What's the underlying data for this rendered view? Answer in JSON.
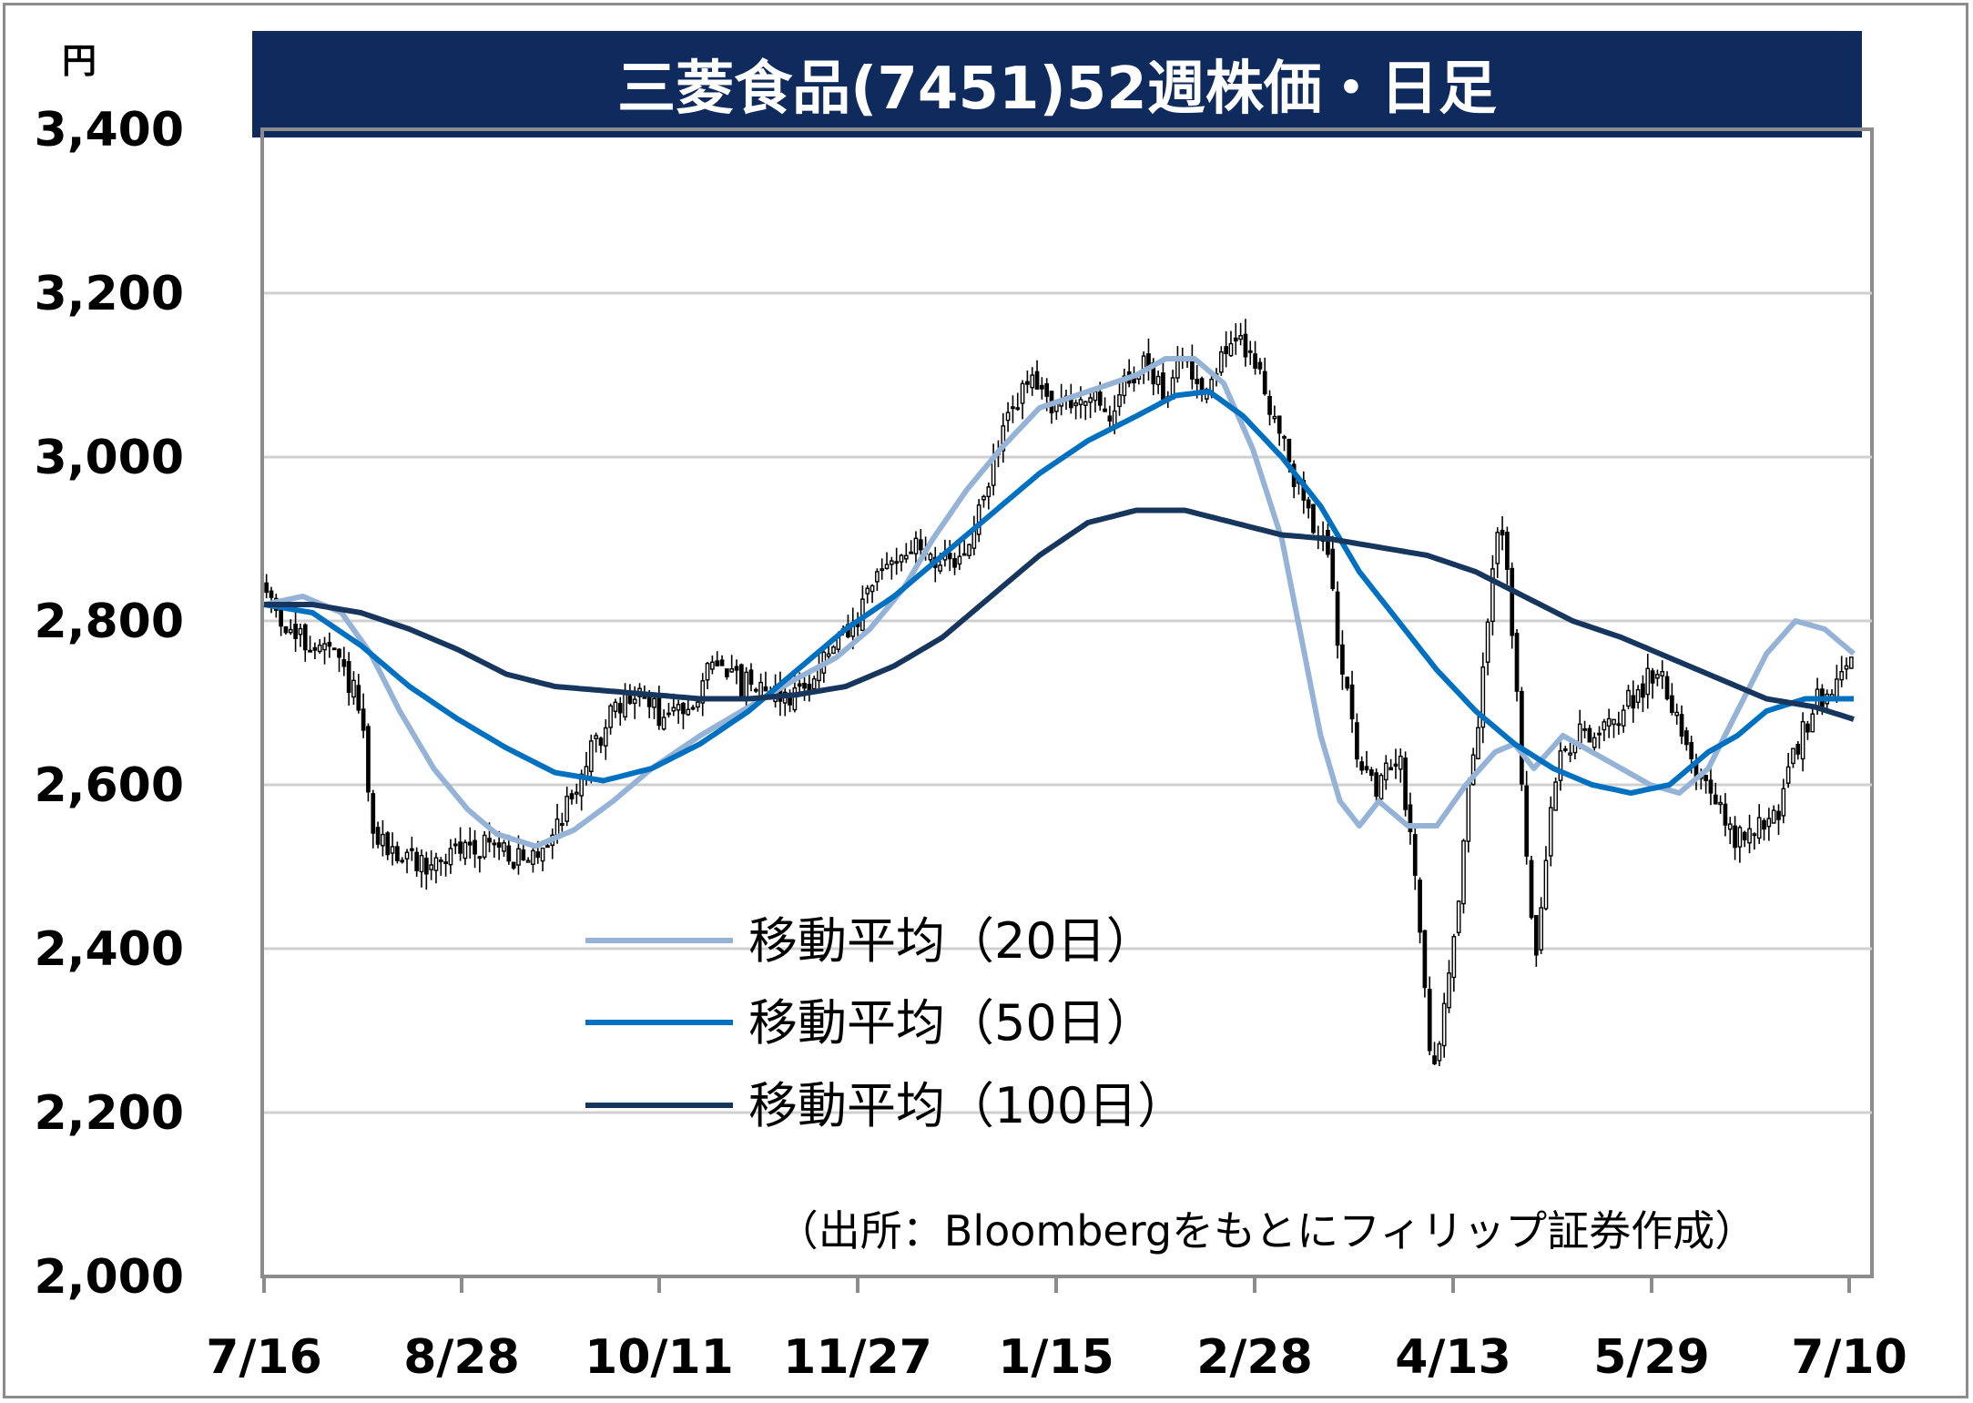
{
  "chart_data": {
    "type": "candlestick",
    "title": "三菱食品(7451)52週株価・日足",
    "unit": "円",
    "ylim": [
      2000,
      3400
    ],
    "y_ticks": [
      "2,000",
      "2,200",
      "2,400",
      "2,600",
      "2,800",
      "3,000",
      "3,200",
      "3,400"
    ],
    "y_tick_values": [
      2000,
      2200,
      2400,
      2600,
      2800,
      3000,
      3200,
      3400
    ],
    "x_ticks": [
      "7/16",
      "8/28",
      "10/11",
      "11/27",
      "1/15",
      "2/28",
      "4/13",
      "5/29",
      "7/10"
    ],
    "grid": true,
    "legend_position": "center-left",
    "source_note": "（出所：Bloombergをもとにフィリップ証券作成）",
    "colors": {
      "title_bg": "#0f2a5c",
      "ma20": "#95b3d7",
      "ma50": "#0070c0",
      "ma100": "#17365d",
      "candle": "#000000",
      "grid": "#d0d0d0"
    },
    "series": [
      {
        "name": "移動平均（20日）",
        "color": "#95b3d7",
        "anchors": [
          [
            0,
            2820
          ],
          [
            8,
            2830
          ],
          [
            16,
            2810
          ],
          [
            22,
            2760
          ],
          [
            28,
            2690
          ],
          [
            35,
            2620
          ],
          [
            42,
            2570
          ],
          [
            48,
            2540
          ],
          [
            56,
            2525
          ],
          [
            64,
            2545
          ],
          [
            72,
            2580
          ],
          [
            80,
            2620
          ],
          [
            90,
            2660
          ],
          [
            100,
            2695
          ],
          [
            110,
            2730
          ],
          [
            118,
            2755
          ],
          [
            125,
            2790
          ],
          [
            132,
            2840
          ],
          [
            138,
            2900
          ],
          [
            145,
            2960
          ],
          [
            152,
            3010
          ],
          [
            160,
            3060
          ],
          [
            170,
            3080
          ],
          [
            180,
            3100
          ],
          [
            186,
            3120
          ],
          [
            192,
            3120
          ],
          [
            198,
            3090
          ],
          [
            204,
            3010
          ],
          [
            210,
            2900
          ],
          [
            214,
            2780
          ],
          [
            218,
            2660
          ],
          [
            222,
            2580
          ],
          [
            226,
            2550
          ],
          [
            230,
            2580
          ],
          [
            236,
            2550
          ],
          [
            242,
            2550
          ],
          [
            248,
            2600
          ],
          [
            254,
            2640
          ],
          [
            258,
            2650
          ],
          [
            262,
            2620
          ],
          [
            268,
            2660
          ],
          [
            274,
            2640
          ],
          [
            280,
            2620
          ],
          [
            286,
            2600
          ],
          [
            292,
            2590
          ],
          [
            298,
            2620
          ],
          [
            304,
            2690
          ],
          [
            310,
            2760
          ],
          [
            316,
            2800
          ],
          [
            322,
            2790
          ],
          [
            328,
            2760
          ]
        ]
      },
      {
        "name": "移動平均（50日）",
        "color": "#0070c0",
        "anchors": [
          [
            0,
            2820
          ],
          [
            10,
            2810
          ],
          [
            20,
            2770
          ],
          [
            30,
            2720
          ],
          [
            40,
            2680
          ],
          [
            50,
            2645
          ],
          [
            60,
            2615
          ],
          [
            70,
            2605
          ],
          [
            80,
            2620
          ],
          [
            90,
            2650
          ],
          [
            100,
            2690
          ],
          [
            110,
            2740
          ],
          [
            120,
            2790
          ],
          [
            130,
            2830
          ],
          [
            140,
            2880
          ],
          [
            150,
            2930
          ],
          [
            160,
            2980
          ],
          [
            170,
            3020
          ],
          [
            180,
            3050
          ],
          [
            188,
            3075
          ],
          [
            195,
            3080
          ],
          [
            202,
            3050
          ],
          [
            210,
            3000
          ],
          [
            218,
            2940
          ],
          [
            226,
            2860
          ],
          [
            234,
            2800
          ],
          [
            242,
            2740
          ],
          [
            250,
            2690
          ],
          [
            258,
            2650
          ],
          [
            266,
            2620
          ],
          [
            274,
            2600
          ],
          [
            282,
            2590
          ],
          [
            290,
            2600
          ],
          [
            298,
            2640
          ],
          [
            304,
            2660
          ],
          [
            310,
            2690
          ],
          [
            318,
            2705
          ],
          [
            328,
            2705
          ]
        ]
      },
      {
        "name": "移動平均（100日）",
        "color": "#17365d",
        "anchors": [
          [
            0,
            2820
          ],
          [
            10,
            2820
          ],
          [
            20,
            2810
          ],
          [
            30,
            2790
          ],
          [
            40,
            2765
          ],
          [
            50,
            2735
          ],
          [
            60,
            2720
          ],
          [
            70,
            2715
          ],
          [
            80,
            2710
          ],
          [
            90,
            2705
          ],
          [
            100,
            2705
          ],
          [
            110,
            2710
          ],
          [
            120,
            2720
          ],
          [
            130,
            2745
          ],
          [
            140,
            2780
          ],
          [
            150,
            2830
          ],
          [
            160,
            2880
          ],
          [
            170,
            2920
          ],
          [
            180,
            2935
          ],
          [
            190,
            2935
          ],
          [
            200,
            2920
          ],
          [
            210,
            2905
          ],
          [
            220,
            2900
          ],
          [
            230,
            2890
          ],
          [
            240,
            2880
          ],
          [
            250,
            2860
          ],
          [
            260,
            2830
          ],
          [
            270,
            2800
          ],
          [
            280,
            2780
          ],
          [
            290,
            2755
          ],
          [
            300,
            2730
          ],
          [
            310,
            2705
          ],
          [
            320,
            2695
          ],
          [
            328,
            2680
          ]
        ]
      }
    ],
    "candle_path": [
      [
        0,
        2840
      ],
      [
        6,
        2780
      ],
      [
        14,
        2760
      ],
      [
        18,
        2720
      ],
      [
        20,
        2690
      ],
      [
        22,
        2540
      ],
      [
        26,
        2520
      ],
      [
        30,
        2510
      ],
      [
        34,
        2500
      ],
      [
        40,
        2520
      ],
      [
        46,
        2530
      ],
      [
        50,
        2520
      ],
      [
        54,
        2500
      ],
      [
        58,
        2530
      ],
      [
        62,
        2570
      ],
      [
        66,
        2620
      ],
      [
        70,
        2670
      ],
      [
        74,
        2700
      ],
      [
        78,
        2710
      ],
      [
        82,
        2680
      ],
      [
        86,
        2690
      ],
      [
        90,
        2720
      ],
      [
        94,
        2760
      ],
      [
        98,
        2720
      ],
      [
        102,
        2730
      ],
      [
        106,
        2710
      ],
      [
        110,
        2710
      ],
      [
        114,
        2740
      ],
      [
        118,
        2770
      ],
      [
        122,
        2790
      ],
      [
        126,
        2850
      ],
      [
        130,
        2880
      ],
      [
        134,
        2890
      ],
      [
        138,
        2880
      ],
      [
        142,
        2860
      ],
      [
        146,
        2900
      ],
      [
        150,
        2980
      ],
      [
        154,
        3060
      ],
      [
        158,
        3090
      ],
      [
        162,
        3070
      ],
      [
        166,
        3060
      ],
      [
        170,
        3080
      ],
      [
        174,
        3040
      ],
      [
        178,
        3100
      ],
      [
        182,
        3110
      ],
      [
        186,
        3080
      ],
      [
        190,
        3120
      ],
      [
        194,
        3080
      ],
      [
        198,
        3130
      ],
      [
        202,
        3140
      ],
      [
        204,
        3120
      ],
      [
        208,
        3060
      ],
      [
        212,
        2980
      ],
      [
        216,
        2930
      ],
      [
        218,
        2900
      ],
      [
        220,
        2860
      ],
      [
        222,
        2760
      ],
      [
        224,
        2720
      ],
      [
        226,
        2620
      ],
      [
        228,
        2600
      ],
      [
        230,
        2590
      ],
      [
        232,
        2620
      ],
      [
        234,
        2640
      ],
      [
        236,
        2560
      ],
      [
        238,
        2480
      ],
      [
        240,
        2300
      ],
      [
        242,
        2260
      ],
      [
        244,
        2350
      ],
      [
        246,
        2430
      ],
      [
        248,
        2570
      ],
      [
        250,
        2650
      ],
      [
        252,
        2760
      ],
      [
        254,
        2900
      ],
      [
        256,
        2920
      ],
      [
        258,
        2750
      ],
      [
        260,
        2560
      ],
      [
        262,
        2380
      ],
      [
        264,
        2460
      ],
      [
        266,
        2600
      ],
      [
        268,
        2650
      ],
      [
        270,
        2640
      ],
      [
        272,
        2670
      ],
      [
        276,
        2660
      ],
      [
        280,
        2690
      ],
      [
        284,
        2720
      ],
      [
        288,
        2740
      ],
      [
        292,
        2680
      ],
      [
        296,
        2610
      ],
      [
        300,
        2570
      ],
      [
        304,
        2530
      ],
      [
        308,
        2550
      ],
      [
        312,
        2560
      ],
      [
        316,
        2640
      ],
      [
        320,
        2700
      ],
      [
        324,
        2720
      ],
      [
        326,
        2760
      ],
      [
        328,
        2750
      ]
    ],
    "candle_count": 328,
    "candle_seed": 1234567,
    "candle_noise": 14
  }
}
